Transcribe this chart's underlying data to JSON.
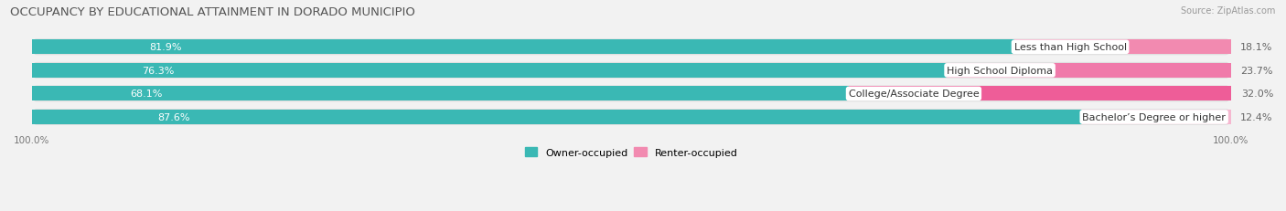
{
  "title": "OCCUPANCY BY EDUCATIONAL ATTAINMENT IN DORADO MUNICIPIO",
  "source": "Source: ZipAtlas.com",
  "categories": [
    "Less than High School",
    "High School Diploma",
    "College/Associate Degree",
    "Bachelor’s Degree or higher"
  ],
  "owner_values": [
    81.9,
    76.3,
    68.1,
    87.6
  ],
  "renter_values": [
    18.1,
    23.7,
    32.0,
    12.4
  ],
  "owner_color": "#3ab8b4",
  "renter_colors": [
    "#f28ab0",
    "#f07aaa",
    "#ee5d98",
    "#f5b8d0"
  ],
  "bg_color": "#f2f2f2",
  "row_bg_color": "#e0e0e0",
  "title_fontsize": 9.5,
  "label_fontsize": 8,
  "value_fontsize": 8,
  "tick_fontsize": 7.5,
  "legend_fontsize": 8,
  "source_fontsize": 7
}
